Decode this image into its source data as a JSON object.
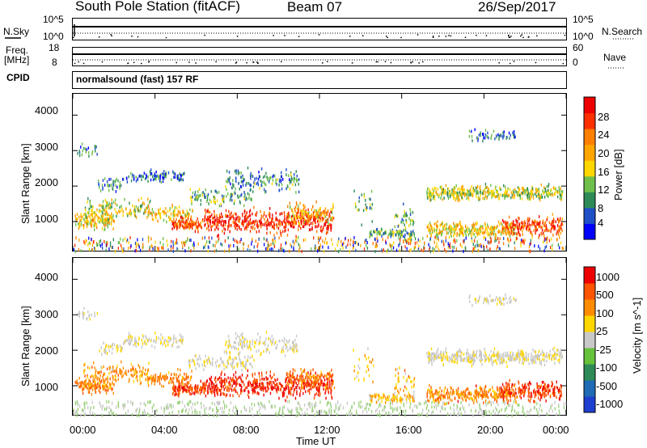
{
  "header": {
    "station": "South Pole Station (fitACF)",
    "beam": "Beam 07",
    "date": "26/Sep/2017"
  },
  "panels": {
    "nsky": {
      "label": "N.Sky",
      "ticks": [
        "10^5",
        "10^0"
      ],
      "right_label": "N.Search",
      "right_ticks": [
        "10^5",
        "10^0"
      ]
    },
    "freq": {
      "label_line1": "Freq.",
      "label_line2": "[MHz]",
      "ticks": [
        "18",
        "8"
      ],
      "right_label": "Nave",
      "right_ticks": [
        "60",
        "0"
      ]
    },
    "cpid": {
      "label": "CPID",
      "text": "normalsound (fast) 157 RF"
    }
  },
  "colors": {
    "power": [
      "#0000ff",
      "#1f50c8",
      "#2e8b57",
      "#6fbf4a",
      "#ffd700",
      "#ffa500",
      "#ff7f00",
      "#ff3000",
      "#ee0000"
    ],
    "velocity": [
      "#1f3fd0",
      "#1f6bb5",
      "#2e8b57",
      "#66c23a",
      "#c8c8c8",
      "#ffd700",
      "#ff8c00",
      "#ff5500",
      "#ee0000"
    ]
  },
  "chart_data": [
    {
      "type": "heatmap",
      "name": "power",
      "xlabel": "",
      "ylabel": "Slant Range [km]",
      "xlim": [
        0,
        24
      ],
      "ylim": [
        180,
        4600
      ],
      "yticks": [
        "1000",
        "2000",
        "3000",
        "4000"
      ],
      "colorbar": {
        "label": "Power [dB]",
        "ticks": [
          "4",
          "8",
          "12",
          "16",
          "20",
          "24",
          "28"
        ],
        "range": [
          0,
          30
        ]
      }
    },
    {
      "type": "heatmap",
      "name": "velocity",
      "xlabel": "Time UT",
      "ylabel": "Slant Range [km]",
      "xlim": [
        0,
        24
      ],
      "ylim": [
        180,
        4600
      ],
      "xticks": [
        "00:00",
        "04:00",
        "08:00",
        "12:00",
        "16:00",
        "20:00",
        "00:00"
      ],
      "yticks": [
        "1000",
        "2000",
        "3000",
        "4000"
      ],
      "colorbar": {
        "label": "Velocity [m s^-1]",
        "ticks": [
          "1000",
          "500",
          "100",
          "25",
          "-25",
          "-100",
          "-500",
          "-1000"
        ],
        "range": [
          -1000,
          1000
        ]
      }
    }
  ]
}
